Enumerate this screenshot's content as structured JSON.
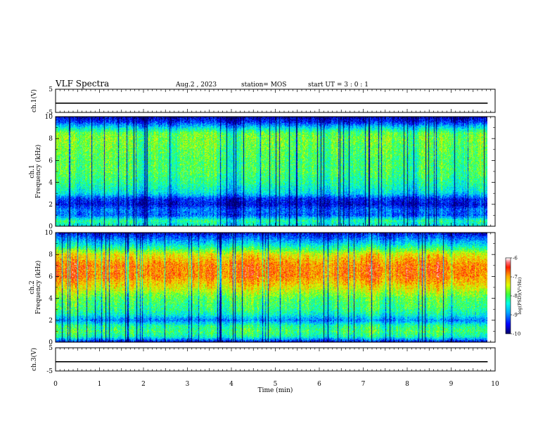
{
  "header": {
    "title": "VLF Spectra",
    "date": "Aug.2 , 2023",
    "station": "station= MOS",
    "start": "start UT = 3 : 0 : 1"
  },
  "chart_data": [
    {
      "type": "line",
      "panel": "ch1-waveform",
      "ylabel": "ch.1(V)",
      "ylim": [
        -5,
        5
      ],
      "yticks": [
        "5",
        "-5"
      ],
      "x": [
        0,
        9.83
      ],
      "y": [
        -1,
        -1
      ]
    },
    {
      "type": "heatmap",
      "panel": "ch1-spectrogram",
      "ylabel": "ch.1 Frequency (kHz)",
      "ylim": [
        0,
        10
      ],
      "yticks": [
        "10",
        "8",
        "6",
        "4",
        "2",
        "0"
      ],
      "colorbar": {
        "label": "log(PSD)(V²/Hz)",
        "ticks": [
          "-6",
          "-7",
          "-8",
          "-9",
          "-10"
        ],
        "range": [
          -10,
          -6
        ]
      },
      "profile_khz": [
        0,
        0.5,
        1,
        1.5,
        2,
        2.5,
        3,
        4,
        5,
        6,
        7,
        8,
        8.5,
        9,
        9.5,
        10
      ],
      "profile_level": [
        -8.6,
        -8.2,
        -9.2,
        -9.1,
        -9.6,
        -9.4,
        -8.6,
        -8.2,
        -8.0,
        -8.0,
        -7.9,
        -7.8,
        -7.9,
        -8.6,
        -9.4,
        -9.8
      ]
    },
    {
      "type": "heatmap",
      "panel": "ch2-spectrogram",
      "ylabel": "ch.2 Frequency (kHz)",
      "ylim": [
        0,
        10
      ],
      "yticks": [
        "10",
        "8",
        "6",
        "4",
        "2",
        "0"
      ],
      "colorbar": {
        "label": "log(PSD)(V²/Hz)",
        "ticks": [
          "-6",
          "-7",
          "-8",
          "-9",
          "-10"
        ],
        "range": [
          -10,
          -6
        ]
      },
      "profile_khz": [
        0,
        0.5,
        1,
        1.5,
        2,
        2.5,
        3,
        4,
        5,
        6,
        7,
        8,
        8.5,
        9,
        9.5,
        10
      ],
      "profile_level": [
        -9.6,
        -8.3,
        -8.0,
        -8.2,
        -9.0,
        -8.4,
        -8.1,
        -7.9,
        -7.3,
        -6.8,
        -6.8,
        -7.3,
        -8.0,
        -8.6,
        -9.1,
        -9.6
      ]
    },
    {
      "type": "line",
      "panel": "ch3-waveform",
      "ylabel": "ch.3(V)",
      "ylim": [
        -5,
        5
      ],
      "yticks": [
        "5",
        "-5"
      ],
      "x": [
        0,
        9.83
      ],
      "y": [
        -1,
        -1
      ]
    }
  ],
  "xaxis": {
    "label": "Time (min)",
    "xlim": [
      0,
      10
    ],
    "ticks": [
      "0",
      "1",
      "2",
      "3",
      "4",
      "5",
      "6",
      "7",
      "8",
      "9",
      "10"
    ],
    "data_end": 9.83
  },
  "colors": {
    "frame": "#000000",
    "background": "#ffffff"
  }
}
